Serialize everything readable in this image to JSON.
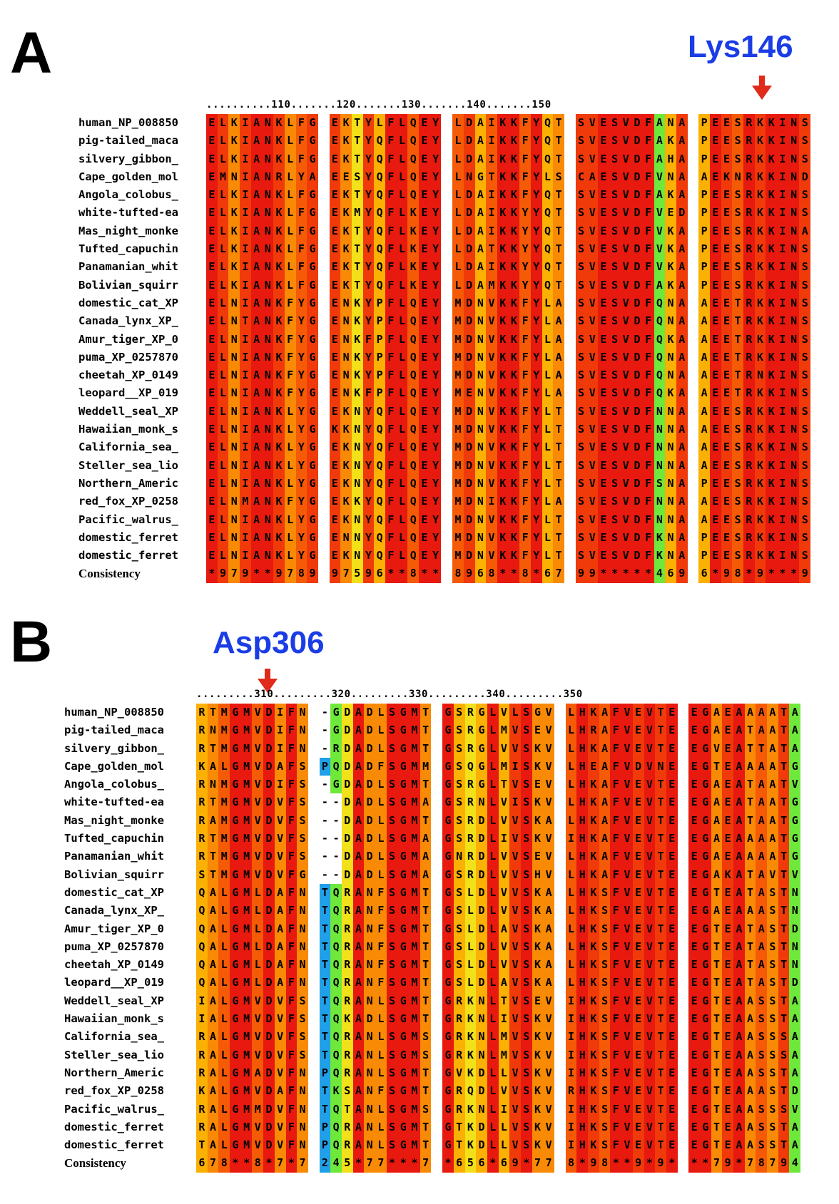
{
  "panel_a": {
    "letter": "A",
    "marker": "Lys146",
    "ruler": "..........110.......120.......130.......140.......150",
    "consistency_label": "Consistency",
    "names": [
      "human_NP_008850",
      "pig-tailed_maca",
      "silvery_gibbon_",
      "Cape_golden_mol",
      "Angola_colobus_",
      "white-tufted-ea",
      "Mas_night_monke",
      "Tufted_capuchin",
      "Panamanian_whit",
      "Bolivian_squirr",
      "domestic_cat_XP",
      "Canada_lynx_XP_",
      "Amur_tiger_XP_0",
      "puma_XP_0257870",
      "cheetah_XP_0149",
      "leopard__XP_019",
      "Weddell_seal_XP",
      "Hawaiian_monk_s",
      "California_sea_",
      "Steller_sea_lio",
      "Northern_Americ",
      "red_fox_XP_0258",
      "Pacific_walrus_",
      "domestic_ferret",
      "domestic_ferret"
    ],
    "sequences": [
      "ELKIANKLFG EKTYLFLQEY LDAIKKFYQT SVESVDFANA PEESRKKINS",
      "ELKIANKLFG EKTYQFLQEY LDAIKKFYQT SVESVDFAKA PEESRKKINS",
      "ELKIANKLFG EKTYQFLQEY LDAIKKFYQT SVESVDFAHA PEESRKKINS",
      "EMNIANRLYA EESYQFLQEY LNGTKKFYLS CAESVDFVNA AEKNRKKIND",
      "ELKIANKLFG EKTYQFLQEY LDAIKKFYQT SVESVDFAKA PEESRKKINS",
      "ELKIANKLFG EKMYQFLKEY LDAIKKYYQT SVESVDFVED PEESRKKINS",
      "ELKIANKLFG EKTYQFLKEY LDAIKKYYQT SVESVDFVKA PEESRKKINA",
      "ELKIANKLFG EKTYQFLKEY LDATKKYYQT SVESVDFVKA PEESRKKINS",
      "ELKIANKLFG EKTYQFLKEY LDAIKKYYQT SVESVDFVKA PEESRKKINS",
      "ELKIANKLFG EKTYQFLKEY LDAMKKYYQT SVESVDFAKA PEESRKKINS",
      "ELNIANKFYG ENKYPFLQEY MDNVKKFYLA SVESVDFQNA AEETRKKINS",
      "ELNTANKFYG ENKYPFLQEY MDNVKKFYLA SVESVDFQNA AEETRKKINS",
      "ELNIANKFYG ENKFPFLQEY MDNVKKFYLA SVESVDFQKA AEETRKKINS",
      "ELNIANKFYG ENKYPFLQEY MDNVKKFYLA SVESVDFQNA AEETRKKINS",
      "ELNIANKFYG ENKYPFLQEY MDNVKKFYLA SVESVDFQNA AEETRNKINS",
      "ELNIANKFYG ENKFPFLQEY MENVKKFYLA SVESVDFQKA AEETRKKINS",
      "ELNIANKLYG EKNYQFLQEY MDNVKKFYLT SVESVDFNNA AEESRKKINS",
      "ELNIANKLYG KKNYQFLQEY MDNVKKFYLT SVESVDFNNA AEESRKKINS",
      "ELNIANKLYG EKNYQFLQEY MDNVKKFYLT SVESVDFNNA AEESRKKINS",
      "ELNIANKLYG EKNYQFLQEY MDNVKKFYLT SVESVDFNNA AEESRKKINS",
      "ELNIANKLYG EKNYQFLQEY MDNVKKFYLT SVESVDFSNA PEESRKKINS",
      "ELNMANKFYG EKKYQFLQEY MDNIKKFYLA SVESVDFNNA AEESRKKINS",
      "ELNIANKLYG EKNYQFLQEY MDNVKKFYLT SVESVDFNNA AEESRKKINS",
      "ELNIANKLYG ENNYQFLQEY MDNVKKFYLT SVESVDFKNA PEESRKKINS",
      "ELNIANKLYG EKNYQFLQEY MDNVKKFYLT SVESVDFKNA PEESRKKINS"
    ],
    "consistency": "*979**9789 97596**8** 8968**8*67 99*****469 6*98*9***9"
  },
  "panel_b": {
    "letter": "B",
    "marker": "Asp306",
    "ruler": ".........310.........320.........330.........340.........350",
    "consistency_label": "Consistency",
    "names": [
      "human_NP_008850",
      "pig-tailed_maca",
      "silvery_gibbon_",
      "Cape_golden_mol",
      "Angola_colobus_",
      "white-tufted-ea",
      "Mas_night_monke",
      "Tufted_capuchin",
      "Panamanian_whit",
      "Bolivian_squirr",
      "domestic_cat_XP",
      "Canada_lynx_XP_",
      "Amur_tiger_XP_0",
      "puma_XP_0257870",
      "cheetah_XP_0149",
      "leopard__XP_019",
      "Weddell_seal_XP",
      "Hawaiian_monk_s",
      "California_sea_",
      "Steller_sea_lio",
      "Northern_Americ",
      "red_fox_XP_0258",
      "Pacific_walrus_",
      "domestic_ferret",
      "domestic_ferret"
    ],
    "sequences": [
      "RTMGMVDIFN -GDADLSGMT GSRGLVLSGV LHKAFVEVTE EGAEAAAATA",
      "RNMGMVDIFN -GDADLSGMT GSRGLMVSEV LHRAFVEVTE EGAEATAATA",
      "RTMGMVDIFN -RDADLSGMT GSRGLVVSKV LHKAFVEVTE EGVEATTATA",
      "KALGMVDAFS PQDADFSGMM GSQGLMISKV LHEAFVDVNE EGTEAAAATG",
      "RNMGMVDIFS -GDADLSGMT GSRGLTVSEV LHKAFVEVTE EGAEATAATV",
      "RTMGMVDVFS --DADLSGMA GSRNLVISKV LHKAFVEVTE EGAEATAATG",
      "RAMGMVDVFS --DADLSGMT GSRDLVVSKA LHKAFVEVTE EGAEATAATG",
      "RTMGMVDVFS --DADLSGMA GSRDLIVSKV IHKAFVEVTE EGAEAAAATG",
      "RTMGMVDVFS --DADLSGMA GNRDLVVSEV LHKAFVEVTE EGAEAAAATG",
      "STMGMVDVFG --DADLSGMA GSRDLVVSHV LHKAFVEVTE EGAKATAVTV",
      "QALGMLDAFN TQRANFSGMT GSLDLVVSKA LHKSFVEVTE EGTEATASTN",
      "QALGMLDAFN TQRANFSGMT GSLDLVVSKA LHKSFVEVTE EGAEAAASTN",
      "QALGMLDAFN TQRANFSGMT GSLDLAVSKA LHKSFVEVTE EGTEATASTD",
      "QALGMLDAFN TQRANFSGMT GSLDLVVSKA LHKSFVEVTE EGTEATASTN",
      "QALGMLDAFN TQRANFSGMT GSLDLVVSKA LHKSFVEVTE EGTEATASTN",
      "QALGMLDAFN TQRANFSGMT GSLDLAVSKA LHKSFVEVTE EGTEATASTD",
      "IALGMVDVFS TQRANLSGMT GRKNLTVSEV IHKSFVEVTE EGTEAASSTA",
      "IALGMVDVFS TQKADLSGMT GRKNLIVSKV IHKSFVEVTE EGTEAASSTA",
      "RALGMVDVFS TQRANLSGMS GRKNLMVSKV IHKSFVEVTE EGTEAASSSA",
      "RALGMVDVFS TQRANLSGMS GRKNLMVSKV IHKSFVEVTE EGTEAASSSA",
      "RALGMADVFN PQRANLSGMT GVKDLLVSKV IHKSFVEVTE EGTEAASSTA",
      "KALGMVDAFN TKSANFSGMT GRQDLVVSKV RHKSFVEVTE EGTEAAASTD",
      "RALGMMDVFN TQTANLSGMS GRKNLIVSKV IHKSFVEVTE EGTEAASSSV",
      "RALGMVDVFN PQRANLSGMT GTKDLLVSKV IHKSFVEVTE EGTEAASSTA",
      "TALGMVDVFN PQRANLSGMT GTKDLLVSKV IHKSFVEVTE EGTEAASSTA"
    ],
    "consistency": "678**8*7*7 245*77***7 *656*69*77 8*98**9*9* **79*78794"
  },
  "colors": {
    "c9": "#e8190e",
    "c8": "#f03a0a",
    "c7": "#f55a06",
    "c6": "#f98a05",
    "c5": "#fbb004",
    "c4": "#f2e01a",
    "c3": "#6fe83c",
    "c2": "#20cf8a",
    "c1": "#1fa0e8",
    "c0": "#3d7cf0",
    "arrow": "#e02a1a",
    "marker_text": "#1a3de6"
  }
}
